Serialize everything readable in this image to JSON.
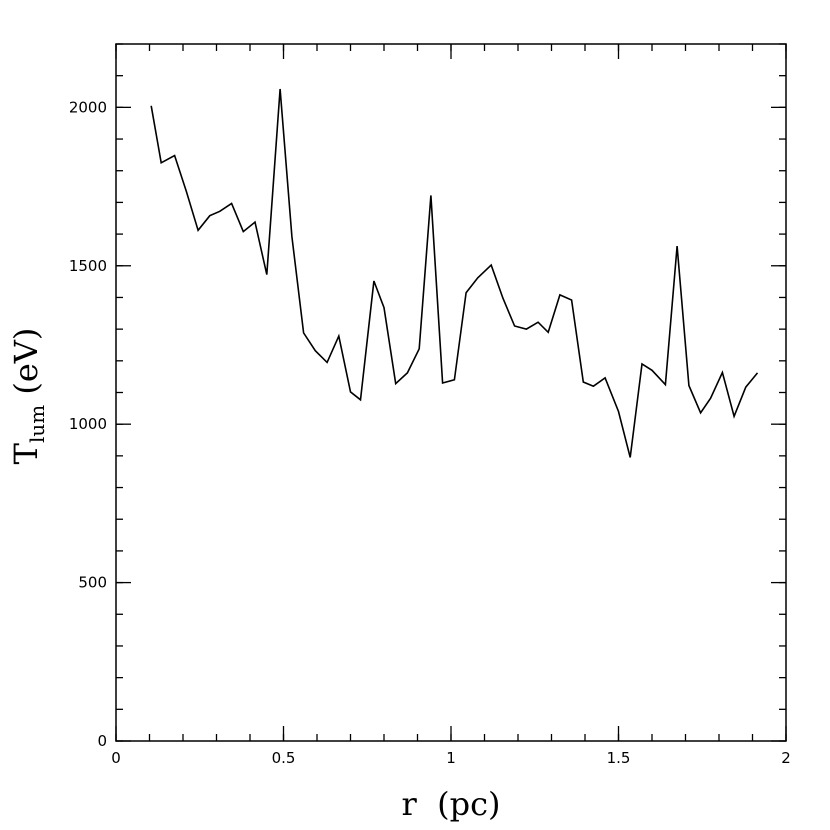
{
  "chart_data": {
    "type": "line",
    "title": "",
    "xlabel": "r  (pc)",
    "ylabel": {
      "main": "T",
      "sub": "lum",
      "unit": " (eV)"
    },
    "xlim": [
      0,
      2
    ],
    "ylim": [
      0,
      2200
    ],
    "xticks": [
      {
        "value": 0,
        "label": "0"
      },
      {
        "value": 0.5,
        "label": "0.5"
      },
      {
        "value": 1,
        "label": "1"
      },
      {
        "value": 1.5,
        "label": "1.5"
      },
      {
        "value": 2,
        "label": "2"
      }
    ],
    "yticks": [
      {
        "value": 0,
        "label": "0"
      },
      {
        "value": 500,
        "label": "500"
      },
      {
        "value": 1000,
        "label": "1000"
      },
      {
        "value": 1500,
        "label": "1500"
      },
      {
        "value": 2000,
        "label": "2000"
      }
    ],
    "x_minor_step": 0.1,
    "y_minor_step": 100,
    "grid": false,
    "series": [
      {
        "color": "#000000",
        "x": [
          0.105,
          0.135,
          0.175,
          0.21,
          0.245,
          0.28,
          0.31,
          0.345,
          0.38,
          0.415,
          0.45,
          0.49,
          0.525,
          0.56,
          0.595,
          0.63,
          0.665,
          0.7,
          0.73,
          0.77,
          0.8,
          0.835,
          0.87,
          0.905,
          0.94,
          0.975,
          1.01,
          1.045,
          1.08,
          1.12,
          1.155,
          1.19,
          1.225,
          1.26,
          1.29,
          1.325,
          1.36,
          1.395,
          1.425,
          1.46,
          1.5,
          1.535,
          1.57,
          1.6,
          1.64,
          1.675,
          1.71,
          1.745,
          1.775,
          1.81,
          1.845,
          1.88,
          1.915
        ],
        "y": [
          2005,
          1825,
          1848,
          1735,
          1612,
          1658,
          1672,
          1697,
          1608,
          1638,
          1472,
          2058,
          1592,
          1288,
          1232,
          1195,
          1278,
          1102,
          1077,
          1452,
          1368,
          1128,
          1162,
          1238,
          1722,
          1130,
          1140,
          1415,
          1462,
          1502,
          1398,
          1310,
          1300,
          1322,
          1290,
          1408,
          1392,
          1133,
          1120,
          1146,
          1040,
          895,
          1190,
          1170,
          1125,
          1562,
          1122,
          1036,
          1082,
          1163,
          1025,
          1117,
          1162
        ]
      }
    ]
  }
}
